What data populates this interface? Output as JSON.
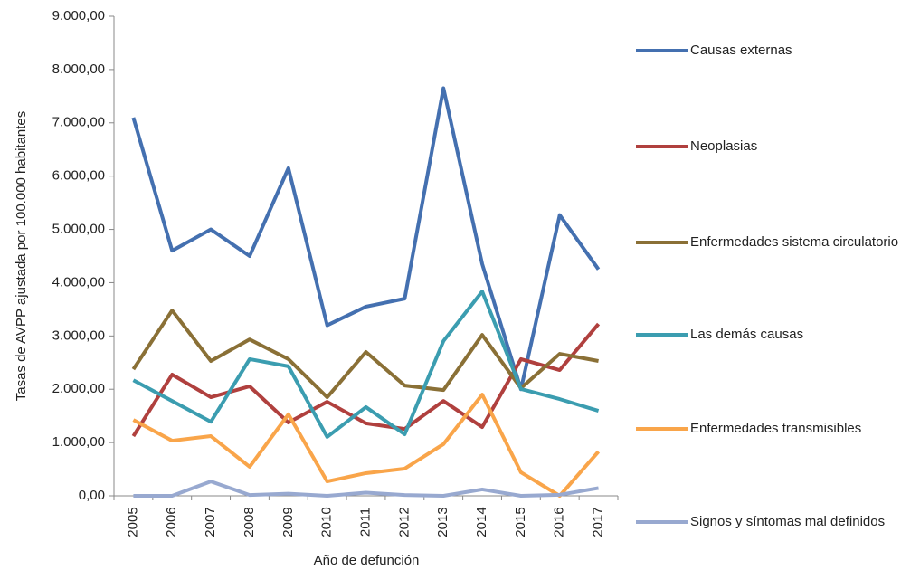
{
  "chart_data": {
    "type": "line",
    "y_label": "Tasas de AVPP ajustada por 100.000 habitantes",
    "x_label": "Año de defunción",
    "categories": [
      "2005",
      "2006",
      "2007",
      "2008",
      "2009",
      "2010",
      "2011",
      "2012",
      "2013",
      "2014",
      "2015",
      "2016",
      "2017"
    ],
    "ylim": [
      0,
      9000
    ],
    "yticks": [
      {
        "value": 0,
        "label": "0,00"
      },
      {
        "value": 1000,
        "label": "1.000,00"
      },
      {
        "value": 2000,
        "label": "2.000,00"
      },
      {
        "value": 3000,
        "label": "3.000,00"
      },
      {
        "value": 4000,
        "label": "4.000,00"
      },
      {
        "value": 5000,
        "label": "5.000,00"
      },
      {
        "value": 6000,
        "label": "6.000,00"
      },
      {
        "value": 7000,
        "label": "7.000,00"
      },
      {
        "value": 8000,
        "label": "8.000,00"
      },
      {
        "value": 9000,
        "label": "9.000,00"
      }
    ],
    "grid": false,
    "legend": "right",
    "series": [
      {
        "name": "Causas externas",
        "color": "#4470b0",
        "values": [
          7100,
          4600,
          5000,
          4500,
          6150,
          3200,
          3550,
          3700,
          7650,
          4350,
          2000,
          5270,
          4250
        ]
      },
      {
        "name": "Neoplasias",
        "color": "#b0403e",
        "values": [
          1120,
          2275,
          1850,
          2055,
          1375,
          1765,
          1360,
          1255,
          1780,
          1290,
          2565,
          2360,
          3225
        ]
      },
      {
        "name": "Enfermedades sistema circulatorio",
        "color": "#8a7036",
        "values": [
          2375,
          3480,
          2530,
          2935,
          2565,
          1850,
          2700,
          2070,
          1985,
          3020,
          2020,
          2665,
          2530
        ]
      },
      {
        "name": "Las demás causas",
        "color": "#3b9db0",
        "values": [
          2170,
          1780,
          1390,
          2565,
          2430,
          1105,
          1665,
          1155,
          2905,
          3835,
          2005,
          1815,
          1595
        ]
      },
      {
        "name": "Enfermedades transmisibles",
        "color": "#f9a54a",
        "values": [
          1425,
          1035,
          1120,
          545,
          1530,
          270,
          425,
          510,
          970,
          1900,
          440,
          0,
          830
        ]
      },
      {
        "name": "Signos y síntomas mal definidos",
        "color": "#98a9d0",
        "values": [
          0,
          0,
          270,
          15,
          40,
          0,
          60,
          15,
          0,
          120,
          0,
          20,
          145
        ]
      }
    ]
  }
}
